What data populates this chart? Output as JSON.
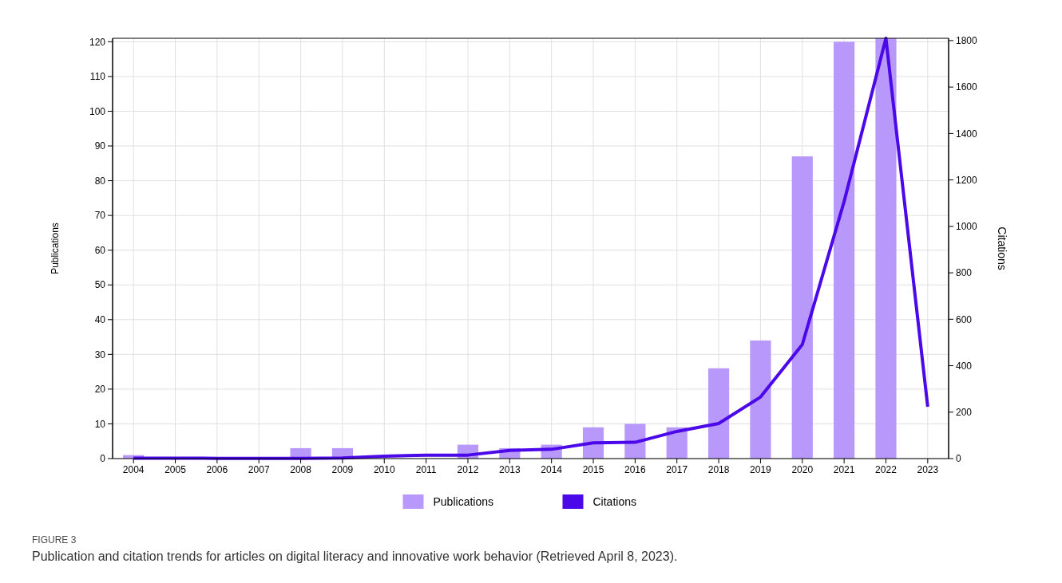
{
  "chart_data": {
    "type": "bar",
    "categories": [
      "2004",
      "2005",
      "2006",
      "2007",
      "2008",
      "2009",
      "2010",
      "2011",
      "2012",
      "2013",
      "2014",
      "2015",
      "2016",
      "2017",
      "2018",
      "2019",
      "2020",
      "2021",
      "2022",
      "2023"
    ],
    "ylabel": "Publications",
    "y2label": "Citations",
    "ylim": [
      0,
      121
    ],
    "yticks": [
      0,
      10,
      20,
      30,
      40,
      50,
      60,
      70,
      80,
      90,
      100,
      110,
      120
    ],
    "y2lim": [
      0,
      1810
    ],
    "y2ticks": [
      0,
      200,
      400,
      600,
      800,
      1000,
      1200,
      1400,
      1600,
      1800
    ],
    "grid": true,
    "legend": "bottom",
    "series": [
      {
        "name": "Publications",
        "color": "#b899fb",
        "values": [
          1,
          0,
          0,
          0,
          3,
          3,
          0,
          0,
          4,
          3,
          4,
          9,
          10,
          9,
          26,
          34,
          87,
          120,
          121,
          0
        ]
      },
      {
        "name": "Citations",
        "type": "line",
        "axis": "y2",
        "color": "#4b08e8",
        "values": [
          2,
          2,
          1,
          1,
          1,
          3,
          10,
          15,
          15,
          35,
          40,
          68,
          70,
          117,
          151,
          265,
          491,
          1107,
          1810,
          223
        ]
      }
    ],
    "annotations": [
      "FIGURE 3",
      "Publication and citation trends for articles on digital literacy and innovative work behavior (Retrieved April 8, 2023)."
    ]
  }
}
